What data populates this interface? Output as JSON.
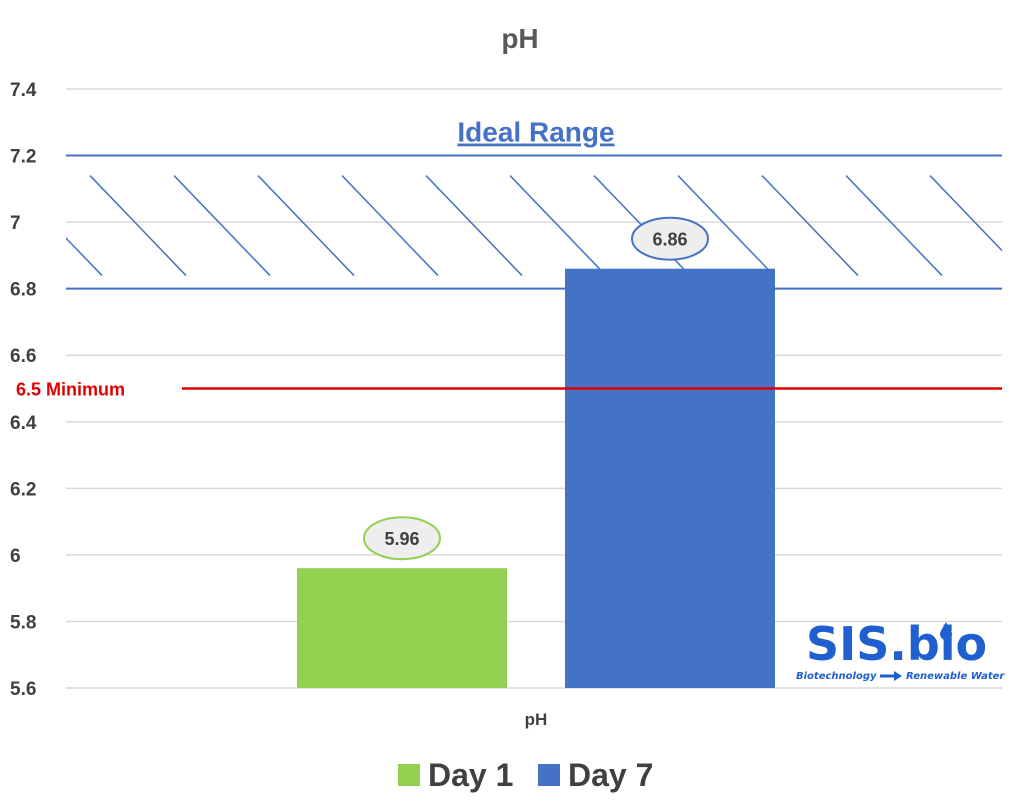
{
  "chart_data": {
    "type": "bar",
    "title": "pH",
    "categories": [
      "pH"
    ],
    "series": [
      {
        "name": "Day 1",
        "values": [
          5.96
        ],
        "color": "#92D050"
      },
      {
        "name": "Day 7",
        "values": [
          6.86
        ],
        "color": "#4472C4"
      }
    ],
    "ylim": [
      5.6,
      7.4
    ],
    "yticks": [
      "5.6",
      "5.8",
      "6",
      "6.2",
      "6.4",
      "6.6",
      "6.8",
      "7",
      "7.2",
      "7.4"
    ],
    "grid": true,
    "legend_position": "bottom",
    "ideal_range": {
      "label": "Ideal Range",
      "min": 6.8,
      "max": 7.2,
      "color": "#4472C4"
    },
    "minimum_line": {
      "label": "6.5 Minimum",
      "value": 6.5,
      "color": "#E00000"
    },
    "data_labels": [
      "5.96",
      "6.86"
    ]
  },
  "logo": {
    "text_main": "SIS.bio",
    "text_left": "Biotechnology",
    "text_right": "Renewable Water",
    "color": "#1F5FD0"
  }
}
